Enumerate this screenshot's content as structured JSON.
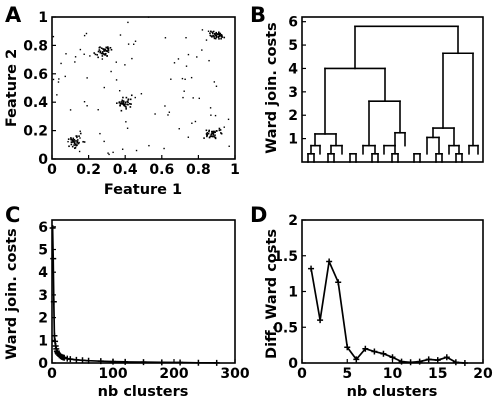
{
  "panels": [
    "A",
    "B",
    "C",
    "D"
  ],
  "chart_data": [
    {
      "id": "A",
      "type": "scatter",
      "xlabel": "Feature 1",
      "ylabel": "Feature 2",
      "xlim": [
        0,
        1
      ],
      "ylim": [
        0,
        1
      ],
      "xticks": [
        "0",
        "0.2",
        "0.4",
        "0.6",
        "0.8",
        "1"
      ],
      "yticks": [
        "0",
        "0.2",
        "0.4",
        "0.6",
        "0.8",
        "1"
      ],
      "clusters": [
        {
          "center": [
            0.13,
            0.13
          ],
          "spread": 0.035
        },
        {
          "center": [
            0.28,
            0.76
          ],
          "spread": 0.035
        },
        {
          "center": [
            0.4,
            0.4
          ],
          "spread": 0.035
        },
        {
          "center": [
            0.88,
            0.18
          ],
          "spread": 0.035
        },
        {
          "center": [
            0.9,
            0.87
          ],
          "spread": 0.03
        }
      ]
    },
    {
      "id": "B",
      "type": "dendrogram",
      "ylabel": "Ward join. costs",
      "ylim": [
        0,
        6.2
      ],
      "yticks": [
        "1",
        "2",
        "3",
        "4",
        "5",
        "6"
      ],
      "top_merge": 5.8,
      "merges": [
        4.0,
        4.65,
        2.6,
        1.25,
        1.2,
        1.45
      ]
    },
    {
      "id": "C",
      "type": "line",
      "xlabel": "nb clusters",
      "ylabel": "Ward join. costs",
      "xlim": [
        0,
        300
      ],
      "ylim": [
        0,
        6.3
      ],
      "xticks": [
        "0",
        "100",
        "200",
        "300"
      ],
      "yticks": [
        "0",
        "1",
        "2",
        "3",
        "4",
        "5",
        "6"
      ],
      "x": [
        1,
        2,
        3,
        4,
        5,
        6,
        7,
        8,
        9,
        10,
        12,
        14,
        16,
        18,
        20,
        25,
        30,
        40,
        50,
        60,
        80,
        100,
        120,
        150,
        180,
        210,
        240,
        270
      ],
      "y": [
        5.95,
        4.6,
        2.7,
        1.2,
        0.95,
        0.75,
        0.62,
        0.52,
        0.45,
        0.4,
        0.34,
        0.3,
        0.27,
        0.25,
        0.23,
        0.19,
        0.17,
        0.14,
        0.12,
        0.1,
        0.08,
        0.06,
        0.05,
        0.04,
        0.03,
        0.02,
        0.01,
        0.005
      ]
    },
    {
      "id": "D",
      "type": "line",
      "xlabel": "nb clusters",
      "ylabel": "Diff. Ward costs",
      "xlim": [
        0,
        20
      ],
      "ylim": [
        0,
        2
      ],
      "xticks": [
        "0",
        "5",
        "10",
        "15",
        "20"
      ],
      "yticks": [
        "0",
        "0.5",
        "1",
        "1.5",
        "2"
      ],
      "x": [
        1,
        2,
        3,
        4,
        5,
        6,
        7,
        8,
        9,
        10,
        11,
        12,
        13,
        14,
        15,
        16,
        17,
        18
      ],
      "y": [
        1.32,
        0.6,
        1.42,
        1.13,
        0.22,
        0.05,
        0.2,
        0.16,
        0.13,
        0.08,
        0.02,
        0.01,
        0.02,
        0.05,
        0.04,
        0.08,
        0.01,
        0.0
      ]
    }
  ]
}
